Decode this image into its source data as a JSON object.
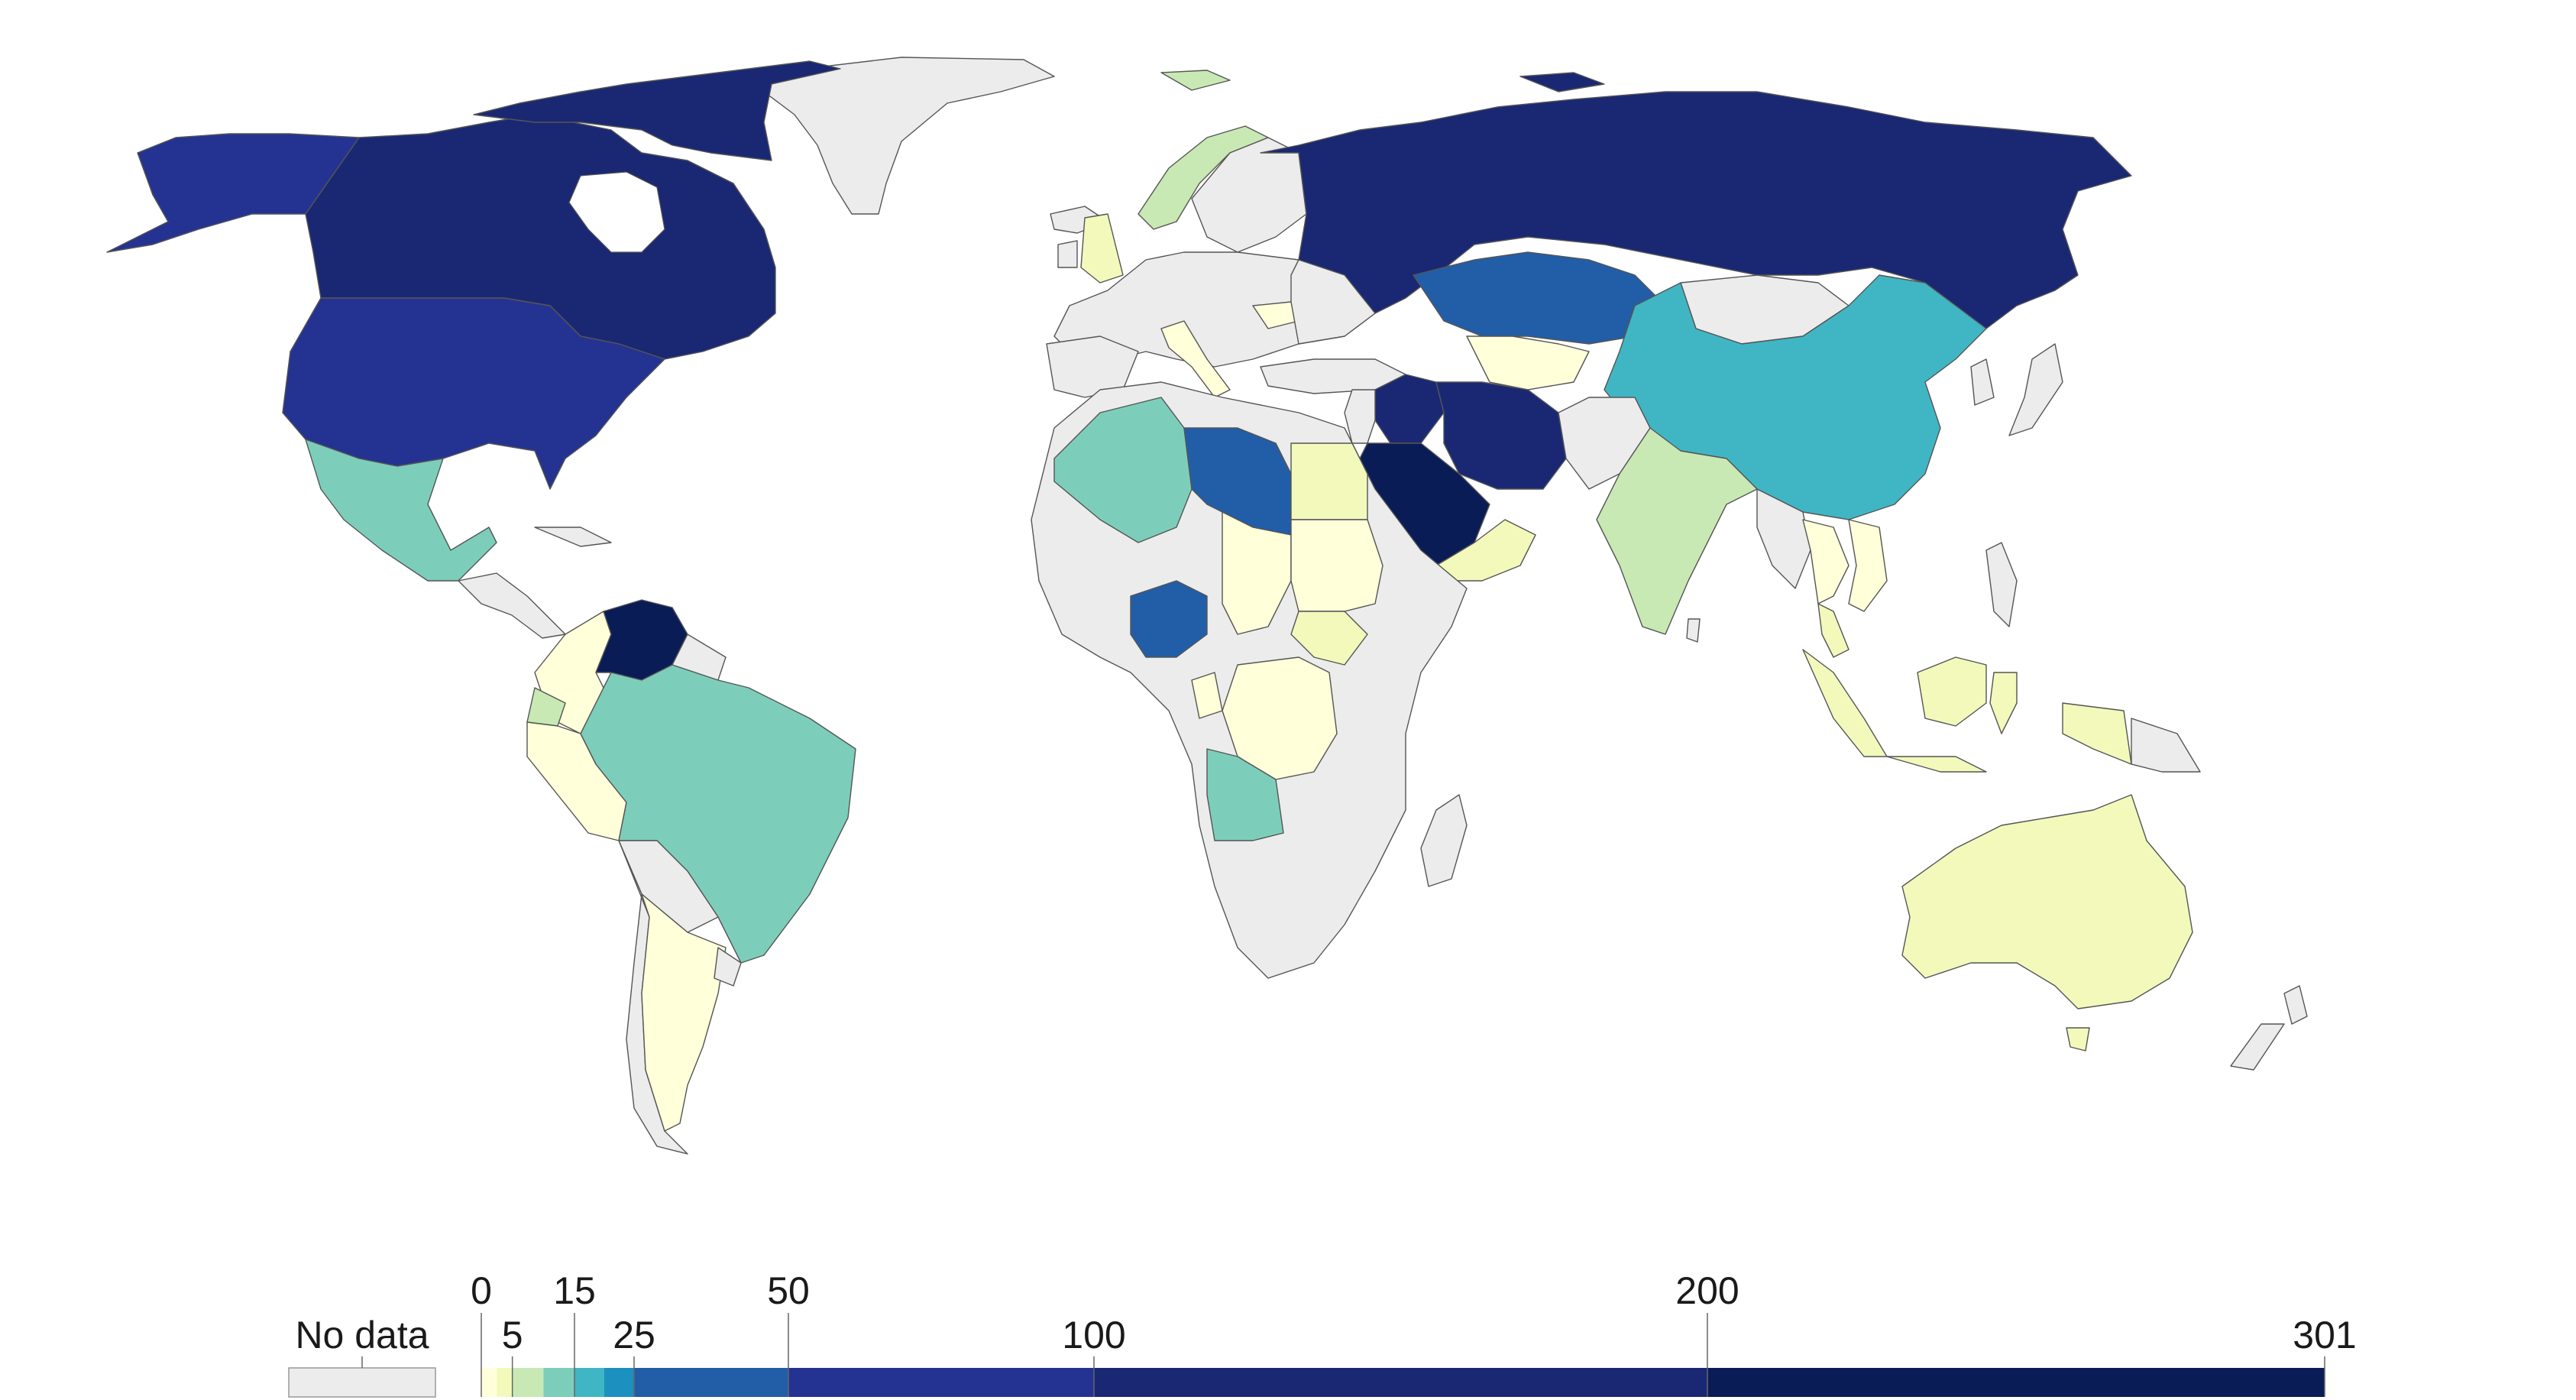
{
  "legend": {
    "no_data_label": "No data",
    "no_data_color": "#ececec",
    "domain_max": 301,
    "bins": [
      {
        "from": 0,
        "to": 2.5,
        "color": "#ffffda"
      },
      {
        "from": 2.5,
        "to": 5,
        "color": "#f2f9bb"
      },
      {
        "from": 5,
        "to": 10,
        "color": "#c8e9b4"
      },
      {
        "from": 10,
        "to": 15,
        "color": "#7ccebb"
      },
      {
        "from": 15,
        "to": 20,
        "color": "#40b6c4"
      },
      {
        "from": 20,
        "to": 25,
        "color": "#1c90bf"
      },
      {
        "from": 25,
        "to": 50,
        "color": "#225ea7"
      },
      {
        "from": 50,
        "to": 100,
        "color": "#243391"
      },
      {
        "from": 100,
        "to": 200,
        "color": "#1a2873"
      },
      {
        "from": 200,
        "to": 301,
        "color": "#0a1c55"
      }
    ],
    "ticks": [
      {
        "value": 0,
        "label": "0",
        "row": "upper"
      },
      {
        "value": 5,
        "label": "5",
        "row": "lower"
      },
      {
        "value": 15,
        "label": "15",
        "row": "upper"
      },
      {
        "value": 25,
        "label": "25",
        "row": "lower"
      },
      {
        "value": 50,
        "label": "50",
        "row": "upper"
      },
      {
        "value": 100,
        "label": "100",
        "row": "lower"
      },
      {
        "value": 200,
        "label": "200",
        "row": "upper"
      },
      {
        "value": 301,
        "label": "301",
        "row": "lower"
      }
    ]
  },
  "map": {
    "region_colors": {
      "canada": "#1a2873",
      "alaska": "#243391",
      "usa": "#243391",
      "mexico": "#7ccebb",
      "venezuela": "#0a1c55",
      "brazil": "#7ccebb",
      "colombia": "#ffffda",
      "peru": "#ffffda",
      "ecuador": "#c8e9b4",
      "argentina": "#ffffda",
      "uk": "#f2f9bb",
      "norway": "#c8e9b4",
      "russia": "#1a2873",
      "kazakhstan": "#225ea7",
      "china": "#40b6c4",
      "india": "#c8e9b4",
      "iran": "#1a2873",
      "iraq": "#1a2873",
      "saudi": "#0a1c55",
      "oman": "#f2f9bb",
      "algeria": "#7ccebb",
      "libya": "#225ea7",
      "egypt": "#f2f9bb",
      "nigeria": "#225ea7",
      "angola": "#7ccebb",
      "chad": "#ffffda",
      "sudan": "#ffffda",
      "south_sudan": "#f2f9bb",
      "drc": "#ffffda",
      "australia": "#f2f9bb",
      "indonesia": "#f2f9bb",
      "malaysia": "#f2f9bb",
      "turkmenistan": "#ffffda",
      "uzbekistan": "#ffffda",
      "thailand": "#ffffda",
      "vietnam": "#ffffda",
      "italy": "#ffffda",
      "romania": "#ffffda"
    }
  }
}
